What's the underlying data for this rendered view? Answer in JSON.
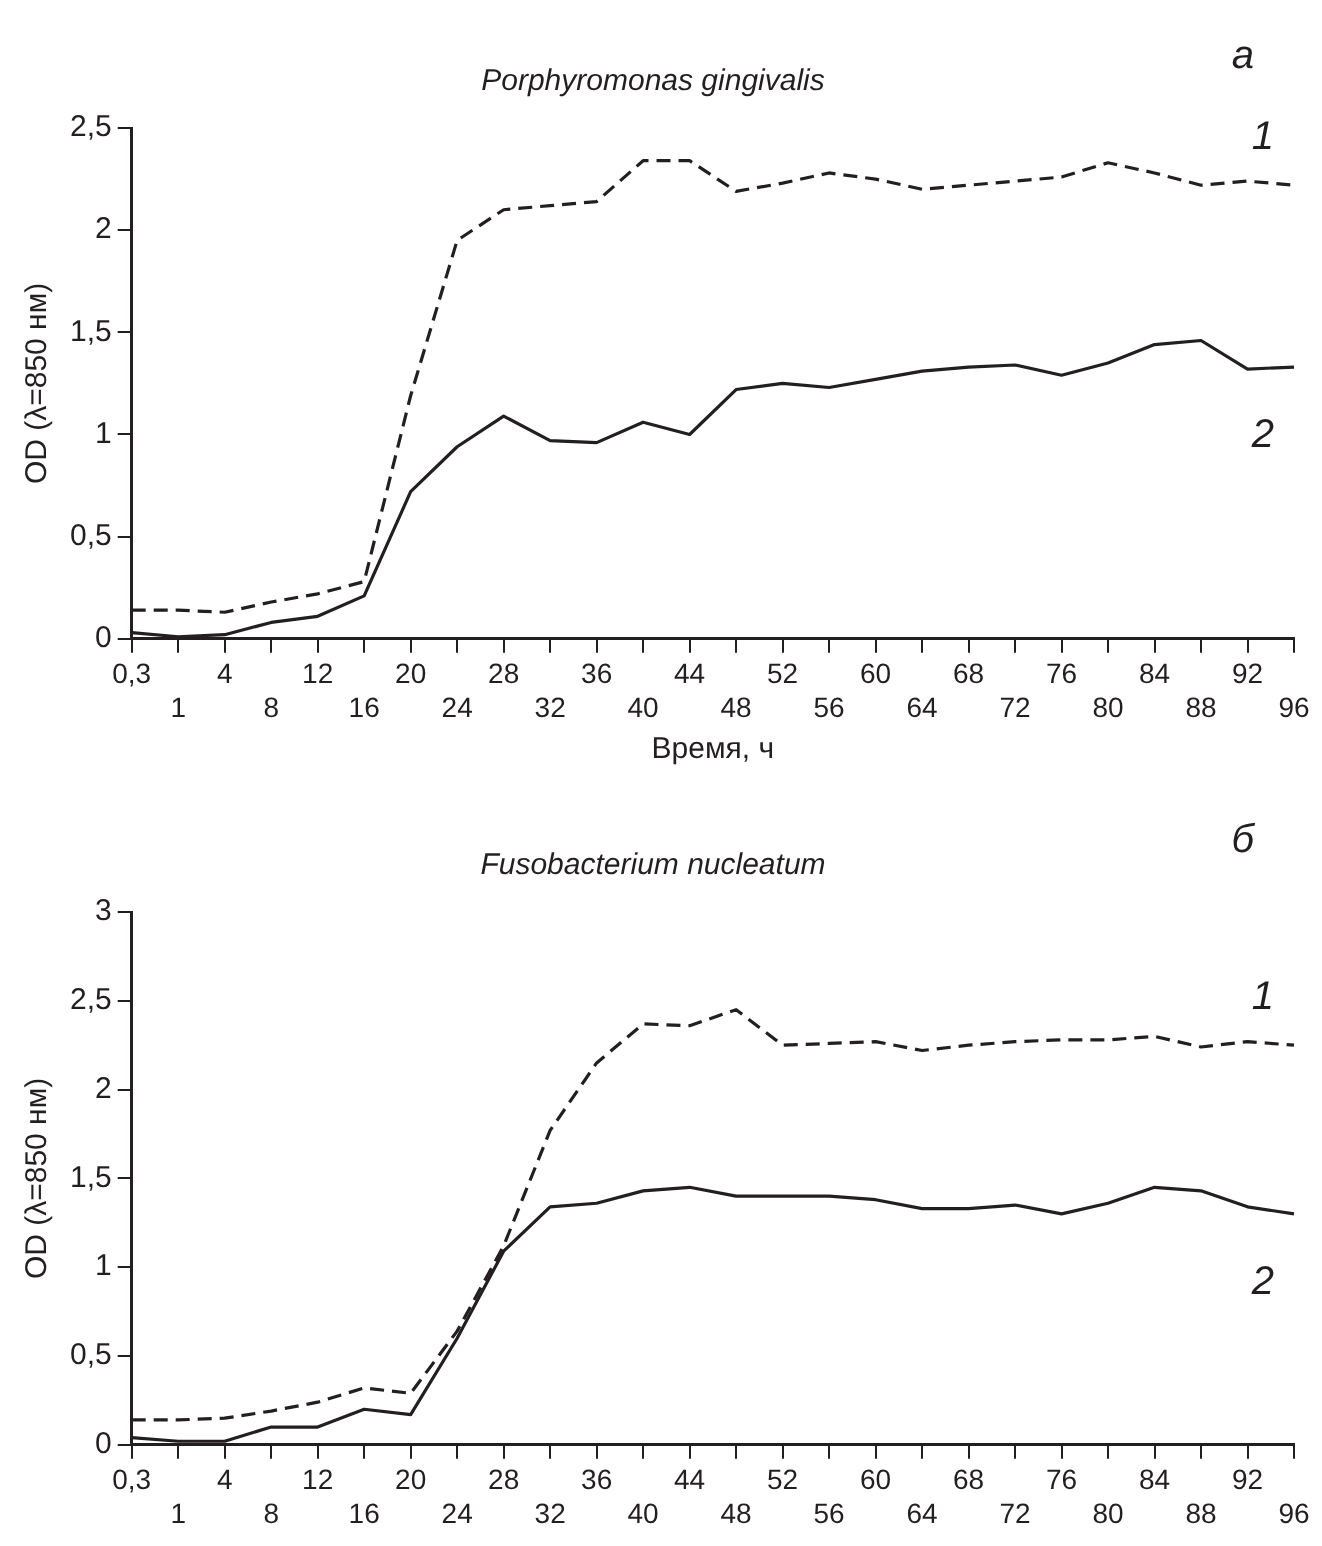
{
  "chart_data": [
    {
      "type": "line",
      "title": "Porphyromonas gingivalis",
      "xlabel": "Время, ч",
      "ylabel": "OD (λ=850 нм)",
      "annotations": [
        "а"
      ],
      "categories": [
        "0,3",
        "1",
        "4",
        "8",
        "12",
        "16",
        "20",
        "24",
        "28",
        "32",
        "36",
        "40",
        "44",
        "48",
        "52",
        "56",
        "60",
        "64",
        "68",
        "72",
        "76",
        "80",
        "84",
        "88",
        "92",
        "96"
      ],
      "series": [
        {
          "name": "1",
          "color": "#231f20",
          "line_style": "dashed",
          "values": [
            0.14,
            0.14,
            0.13,
            0.18,
            0.22,
            0.28,
            1.19,
            1.95,
            2.1,
            2.12,
            2.14,
            2.34,
            2.34,
            2.19,
            2.23,
            2.28,
            2.25,
            2.2,
            2.22,
            2.24,
            2.26,
            2.33,
            2.28,
            2.22,
            2.24,
            2.22
          ]
        },
        {
          "name": "2",
          "color": "#231f20",
          "line_style": "solid",
          "values": [
            0.03,
            0.01,
            0.02,
            0.08,
            0.11,
            0.21,
            0.72,
            0.94,
            1.09,
            0.97,
            0.96,
            1.06,
            1.0,
            1.22,
            1.25,
            1.23,
            1.27,
            1.31,
            1.33,
            1.34,
            1.29,
            1.35,
            1.44,
            1.46,
            1.32,
            1.33
          ]
        }
      ],
      "ylim": [
        0,
        2.5
      ],
      "yticks": [
        0,
        {
          "value": 0.5,
          "label": "0,5"
        },
        1,
        {
          "value": 1.5,
          "label": "1,5"
        },
        2,
        {
          "value": 2.5,
          "label": "2,5"
        }
      ],
      "grid": false,
      "legend": false,
      "marker": "none"
    },
    {
      "type": "line",
      "title": "Fusobacterium nucleatum",
      "ylabel": "OD (λ=850 нм)",
      "annotations": [
        "б"
      ],
      "categories": [
        "0,3",
        "1",
        "4",
        "8",
        "12",
        "16",
        "20",
        "24",
        "28",
        "32",
        "36",
        "40",
        "44",
        "48",
        "52",
        "56",
        "60",
        "64",
        "68",
        "72",
        "76",
        "80",
        "84",
        "88",
        "92",
        "96"
      ],
      "series": [
        {
          "name": "1",
          "color": "#231f20",
          "line_style": "dashed",
          "values": [
            0.14,
            0.14,
            0.15,
            0.19,
            0.24,
            0.32,
            0.29,
            0.64,
            1.12,
            1.77,
            2.15,
            2.37,
            2.36,
            2.45,
            2.25,
            2.26,
            2.27,
            2.22,
            2.25,
            2.27,
            2.28,
            2.28,
            2.3,
            2.24,
            2.27,
            2.25
          ]
        },
        {
          "name": "2",
          "color": "#231f20",
          "line_style": "solid",
          "values": [
            0.04,
            0.02,
            0.02,
            0.1,
            0.1,
            0.2,
            0.17,
            0.6,
            1.09,
            1.34,
            1.36,
            1.43,
            1.45,
            1.4,
            1.4,
            1.4,
            1.38,
            1.33,
            1.33,
            1.35,
            1.3,
            1.36,
            1.45,
            1.43,
            1.34,
            1.3
          ]
        }
      ],
      "ylim": [
        0,
        3
      ],
      "yticks": [
        0,
        {
          "value": 0.5,
          "label": "0,5"
        },
        1,
        {
          "value": 1.5,
          "label": "1,5"
        },
        2,
        {
          "value": 2.5,
          "label": "2,5"
        },
        3
      ],
      "grid": false,
      "legend": false,
      "marker": "none"
    }
  ]
}
